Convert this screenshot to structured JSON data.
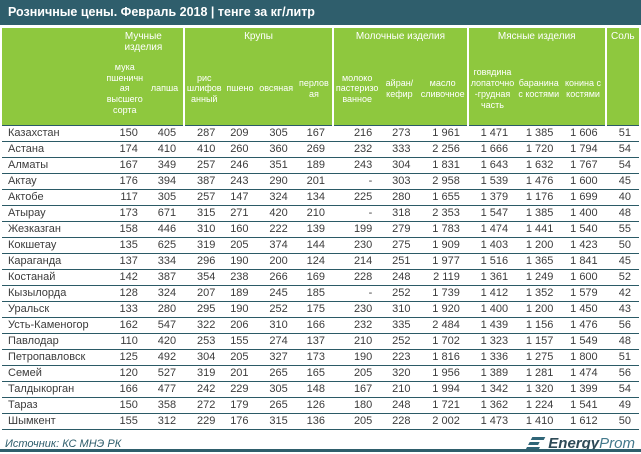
{
  "title_bar": {
    "title": "Розничные цены. Февраль 2018 | тенге за кг/литр"
  },
  "chart_data": {
    "type": "table",
    "title": "Розничные цены. Февраль 2018 | тенге за кг/литр",
    "unit": "тенге за кг/литр",
    "groups": [
      {
        "label": "Мучные изделия",
        "columns": [
          "мука пшеничная высшего сорта",
          "лапша"
        ]
      },
      {
        "label": "Крупы",
        "columns": [
          "рис шлифованный",
          "пшено",
          "овсяная",
          "перловая"
        ]
      },
      {
        "label": "Молочные изделия",
        "columns": [
          "молоко пастеризованное",
          "айран/ кефир",
          "масло сливочное"
        ]
      },
      {
        "label": "Мясные изделия",
        "columns": [
          "говядина лопаточно-грудная часть",
          "баранина с костями",
          "конина с костями"
        ]
      },
      {
        "label": "Соль",
        "columns": []
      }
    ],
    "rows": [
      {
        "name": "Казахстан",
        "values": [
          "150",
          "405",
          "287",
          "209",
          "305",
          "167",
          "216",
          "273",
          "1 961",
          "1 471",
          "1 385",
          "1 606",
          "51"
        ]
      },
      {
        "name": "Астана",
        "values": [
          "174",
          "410",
          "410",
          "260",
          "360",
          "269",
          "232",
          "333",
          "2 256",
          "1 666",
          "1 720",
          "1 794",
          "54"
        ]
      },
      {
        "name": "Алматы",
        "values": [
          "167",
          "349",
          "257",
          "246",
          "351",
          "189",
          "243",
          "304",
          "1 831",
          "1 643",
          "1 632",
          "1 767",
          "54"
        ]
      },
      {
        "name": "Актау",
        "values": [
          "176",
          "394",
          "387",
          "243",
          "290",
          "201",
          "-",
          "303",
          "2 958",
          "1 539",
          "1 476",
          "1 600",
          "45"
        ]
      },
      {
        "name": "Актобе",
        "values": [
          "117",
          "305",
          "257",
          "147",
          "324",
          "134",
          "225",
          "280",
          "1 655",
          "1 379",
          "1 176",
          "1 699",
          "40"
        ]
      },
      {
        "name": "Атырау",
        "values": [
          "173",
          "671",
          "315",
          "271",
          "420",
          "210",
          "-",
          "318",
          "2 353",
          "1 547",
          "1 385",
          "1 400",
          "48"
        ]
      },
      {
        "name": "Жезказган",
        "values": [
          "158",
          "446",
          "310",
          "160",
          "222",
          "139",
          "199",
          "279",
          "1 783",
          "1 474",
          "1 441",
          "1 540",
          "55"
        ]
      },
      {
        "name": "Кокшетау",
        "values": [
          "135",
          "625",
          "319",
          "205",
          "374",
          "144",
          "230",
          "275",
          "1 909",
          "1 403",
          "1 200",
          "1 423",
          "50"
        ]
      },
      {
        "name": "Караганда",
        "values": [
          "137",
          "334",
          "296",
          "190",
          "200",
          "124",
          "214",
          "251",
          "1 977",
          "1 516",
          "1 365",
          "1 841",
          "45"
        ]
      },
      {
        "name": "Костанай",
        "values": [
          "142",
          "387",
          "354",
          "238",
          "266",
          "169",
          "228",
          "248",
          "2 119",
          "1 361",
          "1 249",
          "1 600",
          "52"
        ]
      },
      {
        "name": "Кызылорда",
        "values": [
          "128",
          "324",
          "207",
          "189",
          "245",
          "185",
          "-",
          "252",
          "1 739",
          "1 412",
          "1 352",
          "1 579",
          "42"
        ]
      },
      {
        "name": "Уральск",
        "values": [
          "133",
          "280",
          "295",
          "190",
          "252",
          "175",
          "230",
          "310",
          "1 920",
          "1 400",
          "1 200",
          "1 450",
          "43"
        ]
      },
      {
        "name": "Усть-Каменогор",
        "values": [
          "162",
          "547",
          "322",
          "206",
          "310",
          "166",
          "232",
          "335",
          "2 484",
          "1 439",
          "1 156",
          "1 476",
          "56"
        ]
      },
      {
        "name": "Павлодар",
        "values": [
          "110",
          "420",
          "253",
          "155",
          "274",
          "137",
          "210",
          "252",
          "1 702",
          "1 323",
          "1 157",
          "1 549",
          "48"
        ]
      },
      {
        "name": "Петропавловск",
        "values": [
          "125",
          "492",
          "304",
          "205",
          "327",
          "173",
          "190",
          "223",
          "1 816",
          "1 336",
          "1 275",
          "1 800",
          "51"
        ]
      },
      {
        "name": "Семей",
        "values": [
          "120",
          "527",
          "319",
          "201",
          "265",
          "165",
          "205",
          "320",
          "1 956",
          "1 389",
          "1 281",
          "1 474",
          "56"
        ]
      },
      {
        "name": "Талдыкорган",
        "values": [
          "166",
          "477",
          "242",
          "229",
          "305",
          "148",
          "167",
          "210",
          "1 994",
          "1 342",
          "1 320",
          "1 399",
          "54"
        ]
      },
      {
        "name": "Тараз",
        "values": [
          "150",
          "358",
          "272",
          "179",
          "265",
          "126",
          "180",
          "248",
          "1 721",
          "1 362",
          "1 224",
          "1 541",
          "49"
        ]
      },
      {
        "name": "Шымкент",
        "values": [
          "155",
          "312",
          "229",
          "176",
          "315",
          "136",
          "205",
          "228",
          "2 002",
          "1 473",
          "1 410",
          "1 612",
          "50"
        ]
      }
    ]
  },
  "footer": {
    "source": "Источник: КС МНЭ РК",
    "logo": {
      "icon": "energyprom-logo-icon",
      "text_bold": "Energy",
      "text_light": "Prom"
    }
  },
  "colors": {
    "header_green": "#8ec83e",
    "title_teal": "#2f5e6c",
    "row_line": "#2b5a66",
    "logo_dark": "#2e4a57",
    "logo_light": "#44798c"
  }
}
